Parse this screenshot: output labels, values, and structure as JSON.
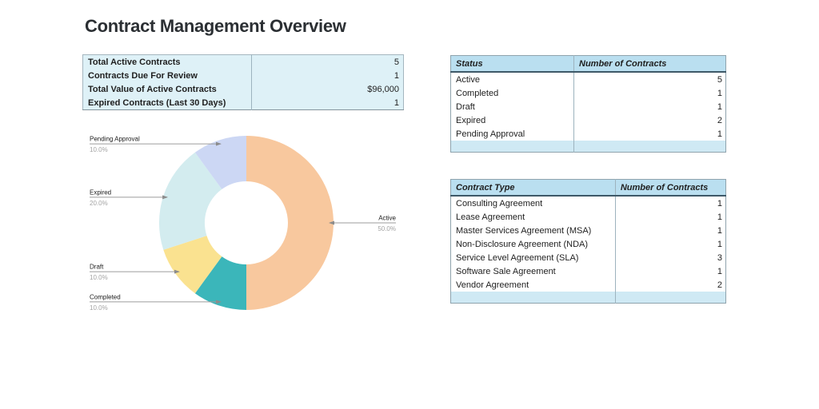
{
  "title": "Contract Management Overview",
  "summary": {
    "rows": [
      {
        "label": "Total Active Contracts",
        "value": "5"
      },
      {
        "label": "Contracts Due For Review",
        "value": "1"
      },
      {
        "label": "Total Value of Active Contracts",
        "value": "$96,000"
      },
      {
        "label": "Expired Contracts (Last 30 Days)",
        "value": "1"
      }
    ]
  },
  "chart_data": {
    "type": "pie",
    "donut": true,
    "title": "",
    "legend_position": "callout-labels",
    "start_angle_deg": 0,
    "direction": "clockwise",
    "slices": [
      {
        "label": "Active",
        "value": 5,
        "pct": "50.0%",
        "color": "#f8c89e"
      },
      {
        "label": "Completed",
        "value": 1,
        "pct": "10.0%",
        "color": "#3bb6ba"
      },
      {
        "label": "Draft",
        "value": 1,
        "pct": "10.0%",
        "color": "#fae290"
      },
      {
        "label": "Expired",
        "value": 2,
        "pct": "20.0%",
        "color": "#d3ecef"
      },
      {
        "label": "Pending Approval",
        "value": 1,
        "pct": "10.0%",
        "color": "#ccd7f4"
      }
    ]
  },
  "status_table": {
    "headers": [
      "Status",
      "Number of Contracts"
    ],
    "rows": [
      [
        "Active",
        "5"
      ],
      [
        "Completed",
        "1"
      ],
      [
        "Draft",
        "1"
      ],
      [
        "Expired",
        "2"
      ],
      [
        "Pending Approval",
        "1"
      ]
    ]
  },
  "type_table": {
    "headers": [
      "Contract Type",
      "Number of Contracts"
    ],
    "rows": [
      [
        "Consulting Agreement",
        "1"
      ],
      [
        "Lease Agreement",
        "1"
      ],
      [
        "Master Services Agreement (MSA)",
        "1"
      ],
      [
        "Non-Disclosure Agreement (NDA)",
        "1"
      ],
      [
        "Service Level Agreement (SLA)",
        "3"
      ],
      [
        "Software Sale Agreement",
        "1"
      ],
      [
        "Vendor Agreement",
        "2"
      ]
    ]
  },
  "colors": {
    "summary_bg": "#def1f7",
    "table_header_bg": "#badff0",
    "table_footer_bg": "#cfe9f4",
    "table_border": "#8fa3ad",
    "leader_line": "#9c9c9c"
  }
}
